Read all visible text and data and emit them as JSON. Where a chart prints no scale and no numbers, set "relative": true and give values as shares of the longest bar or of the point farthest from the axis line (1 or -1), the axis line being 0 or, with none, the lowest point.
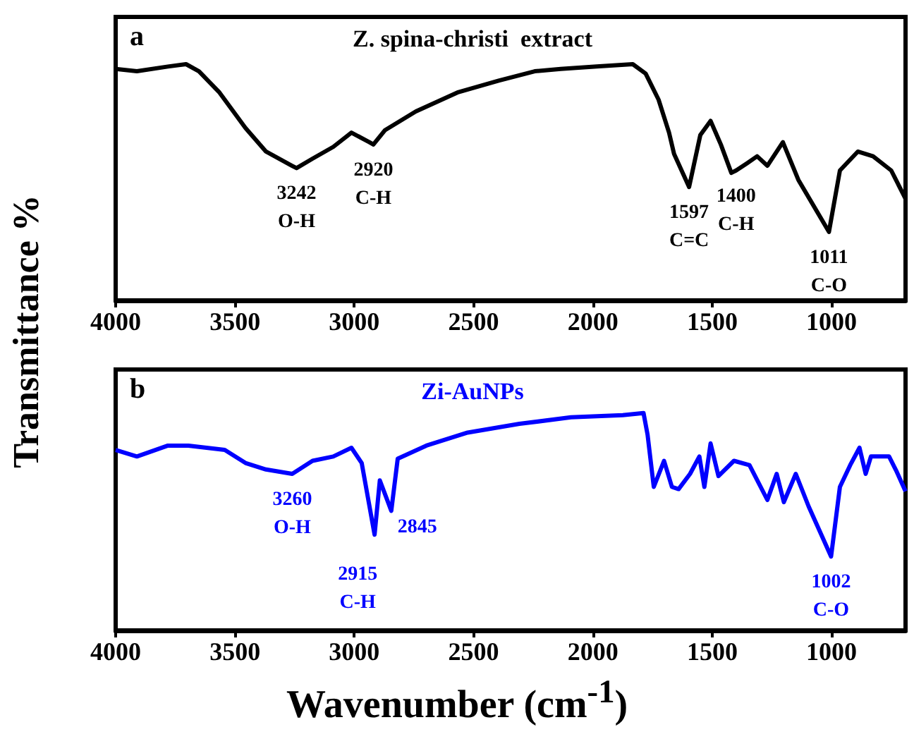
{
  "chart_data": [
    {
      "type": "line",
      "title": "Z. spina-christi  extract",
      "ylabel": "Transmittance %",
      "relative": true,
      "xlim": [
        4000,
        690
      ],
      "xticks": [
        4000,
        3500,
        3000,
        2500,
        2000,
        1500,
        1000
      ],
      "marker": "none",
      "line_style": "solid",
      "series": [
        {
          "color": "#000000",
          "x": [
            4000,
            3911,
            3781,
            3705,
            3651,
            3565,
            3456,
            3370,
            3261,
            3242,
            3175,
            3088,
            3012,
            2937,
            2920,
            2872,
            2742,
            2568,
            2395,
            2244,
            2135,
            1984,
            1833,
            1779,
            1725,
            1681,
            1660,
            1597,
            1550,
            1507,
            1464,
            1420,
            1400,
            1355,
            1312,
            1269,
            1204,
            1139,
            1011,
            965,
            890,
            826,
            750,
            690
          ],
          "values": [
            0.98,
            0.97,
            0.99,
            1.0,
            0.97,
            0.88,
            0.73,
            0.63,
            0.57,
            0.56,
            0.6,
            0.65,
            0.71,
            0.67,
            0.66,
            0.72,
            0.8,
            0.88,
            0.93,
            0.97,
            0.98,
            0.99,
            1.0,
            0.96,
            0.85,
            0.71,
            0.62,
            0.48,
            0.7,
            0.76,
            0.66,
            0.54,
            0.55,
            0.58,
            0.61,
            0.57,
            0.67,
            0.51,
            0.29,
            0.55,
            0.63,
            0.61,
            0.55,
            0.43
          ]
        }
      ],
      "annotations": [
        "a",
        {
          "text": "3242\nO-H",
          "x": 3242,
          "y": 0.56
        },
        {
          "text": "2920\nC-H",
          "x": 2920,
          "y": 0.66
        },
        {
          "text": "1597\nC=C",
          "x": 1597,
          "y": 0.48
        },
        {
          "text": "1400\nC-H",
          "x": 1400,
          "y": 0.55
        },
        {
          "text": "1011\nC-O",
          "x": 1011,
          "y": 0.29
        }
      ]
    },
    {
      "type": "line",
      "title": "Zi-AuNPs",
      "xlabel": "Wavenumber (cm$^{-1}$)",
      "relative": true,
      "xlim": [
        4000,
        690
      ],
      "xticks": [
        4000,
        3500,
        3000,
        2500,
        2000,
        1500,
        1000
      ],
      "marker": "none",
      "line_style": "solid",
      "series": [
        {
          "color": "#0000ff",
          "x": [
            4000,
            3911,
            3781,
            3695,
            3543,
            3456,
            3370,
            3260,
            3175,
            3088,
            3012,
            2969,
            2915,
            2893,
            2845,
            2818,
            2698,
            2525,
            2308,
            2092,
            1875,
            1788,
            1771,
            1745,
            1702,
            1669,
            1641,
            1593,
            1554,
            1533,
            1507,
            1474,
            1409,
            1344,
            1269,
            1230,
            1200,
            1150,
            1096,
            1002,
            965,
            922,
            883,
            857,
            835,
            759,
            727,
            690
          ],
          "values": [
            0.83,
            0.8,
            0.85,
            0.85,
            0.83,
            0.77,
            0.74,
            0.72,
            0.78,
            0.8,
            0.84,
            0.77,
            0.44,
            0.69,
            0.55,
            0.79,
            0.85,
            0.91,
            0.95,
            0.98,
            0.99,
            1.0,
            0.9,
            0.66,
            0.78,
            0.66,
            0.65,
            0.72,
            0.8,
            0.66,
            0.86,
            0.71,
            0.78,
            0.76,
            0.6,
            0.72,
            0.59,
            0.72,
            0.57,
            0.34,
            0.66,
            0.76,
            0.84,
            0.72,
            0.8,
            0.8,
            0.73,
            0.64
          ]
        }
      ],
      "annotations": [
        "b",
        {
          "text": "3260\nO-H",
          "x": 3260,
          "y": 0.72
        },
        {
          "text": "2915\nC-H",
          "x": 2915,
          "y": 0.44
        },
        {
          "text": "2845",
          "x": 2845,
          "y": 0.55
        },
        {
          "text": "1002\nC-O",
          "x": 1002,
          "y": 0.34
        }
      ]
    }
  ]
}
